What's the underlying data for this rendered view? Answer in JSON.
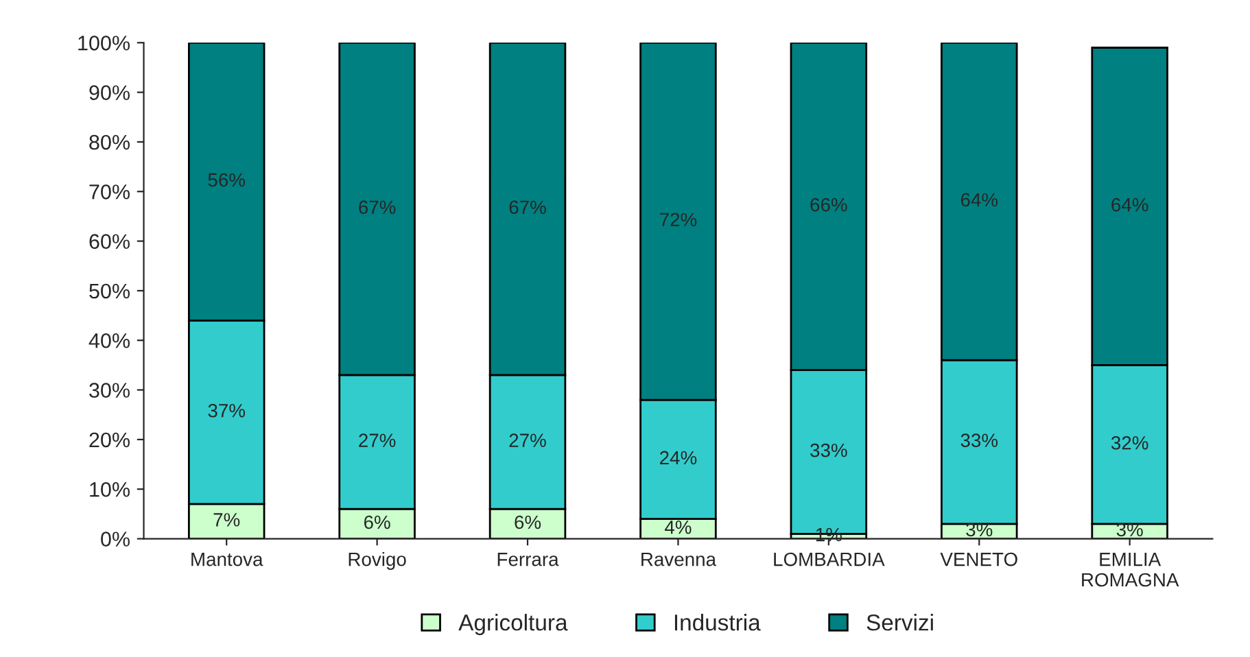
{
  "chart_data": {
    "type": "bar",
    "stacked": true,
    "categories": [
      "Mantova",
      "Rovigo",
      "Ferrara",
      "Ravenna",
      "LOMBARDIA",
      "VENETO",
      "EMILIA\nROMAGNA"
    ],
    "series": [
      {
        "name": "Agricoltura",
        "color": "#ccffcc",
        "values": [
          7,
          6,
          6,
          4,
          1,
          3,
          3
        ],
        "value_labels": [
          "7%",
          "6%",
          "6%",
          "4%",
          "1%",
          "3%",
          "3%"
        ]
      },
      {
        "name": "Industria",
        "color": "#33cccc",
        "values": [
          37,
          27,
          27,
          24,
          33,
          33,
          32
        ],
        "value_labels": [
          "37%",
          "27%",
          "27%",
          "24%",
          "33%",
          "33%",
          "32%"
        ]
      },
      {
        "name": "Servizi",
        "color": "#008080",
        "values": [
          56,
          67,
          67,
          72,
          66,
          64,
          64
        ],
        "value_labels": [
          "56%",
          "67%",
          "67%",
          "72%",
          "66%",
          "64%",
          "64%"
        ]
      }
    ],
    "ylim": [
      0,
      100
    ],
    "yticks": [
      {
        "value": 0,
        "label": "0%"
      },
      {
        "value": 10,
        "label": "10%"
      },
      {
        "value": 20,
        "label": "20%"
      },
      {
        "value": 30,
        "label": "30%"
      },
      {
        "value": 40,
        "label": "40%"
      },
      {
        "value": 50,
        "label": "50%"
      },
      {
        "value": 60,
        "label": "60%"
      },
      {
        "value": 70,
        "label": "70%"
      },
      {
        "value": 80,
        "label": "80%"
      },
      {
        "value": 90,
        "label": "90%"
      },
      {
        "value": 100,
        "label": "100%"
      }
    ],
    "grid": false,
    "legend": "bottom"
  }
}
